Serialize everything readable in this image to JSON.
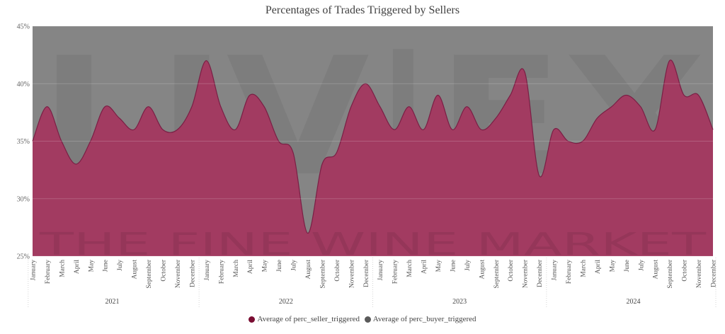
{
  "title": "Percentages of Trades Triggered by Sellers",
  "watermark": {
    "main": "LIV|EX",
    "sub": "THE FINE WINE MARKET"
  },
  "colors": {
    "seller": "#a23b61",
    "buyer": "#858585",
    "legend_seller": "#7a0d32",
    "legend_buyer": "#5a5a5a"
  },
  "chart_data": {
    "type": "area",
    "title": "Percentages of Trades Triggered by Sellers",
    "xlabel": "",
    "ylabel": "",
    "ylim": [
      25,
      45
    ],
    "yticks": [
      "25%",
      "30%",
      "35%",
      "40%",
      "45%"
    ],
    "ytick_values": [
      25,
      30,
      35,
      40,
      45
    ],
    "grid": true,
    "stacked_percent": true,
    "legend_position": "bottom",
    "months": [
      "January",
      "February",
      "March",
      "April",
      "May",
      "June",
      "July",
      "August",
      "September",
      "October",
      "November",
      "December"
    ],
    "years": [
      "2021",
      "2022",
      "2023",
      "2024"
    ],
    "series": [
      {
        "name": "Average of perc_seller_triggered",
        "values": [
          35,
          38,
          35,
          33,
          35,
          38,
          37,
          36,
          38,
          36,
          36,
          38,
          42,
          38,
          36,
          39,
          38,
          35,
          34,
          27,
          33,
          34,
          38,
          40,
          38,
          36,
          38,
          36,
          39,
          36,
          38,
          36,
          37,
          39,
          41,
          32,
          36,
          35,
          35,
          37,
          38,
          39,
          38,
          36,
          42,
          39,
          39,
          36
        ]
      },
      {
        "name": "Average of perc_buyer_triggered",
        "values": "remainder to 100%"
      }
    ]
  }
}
